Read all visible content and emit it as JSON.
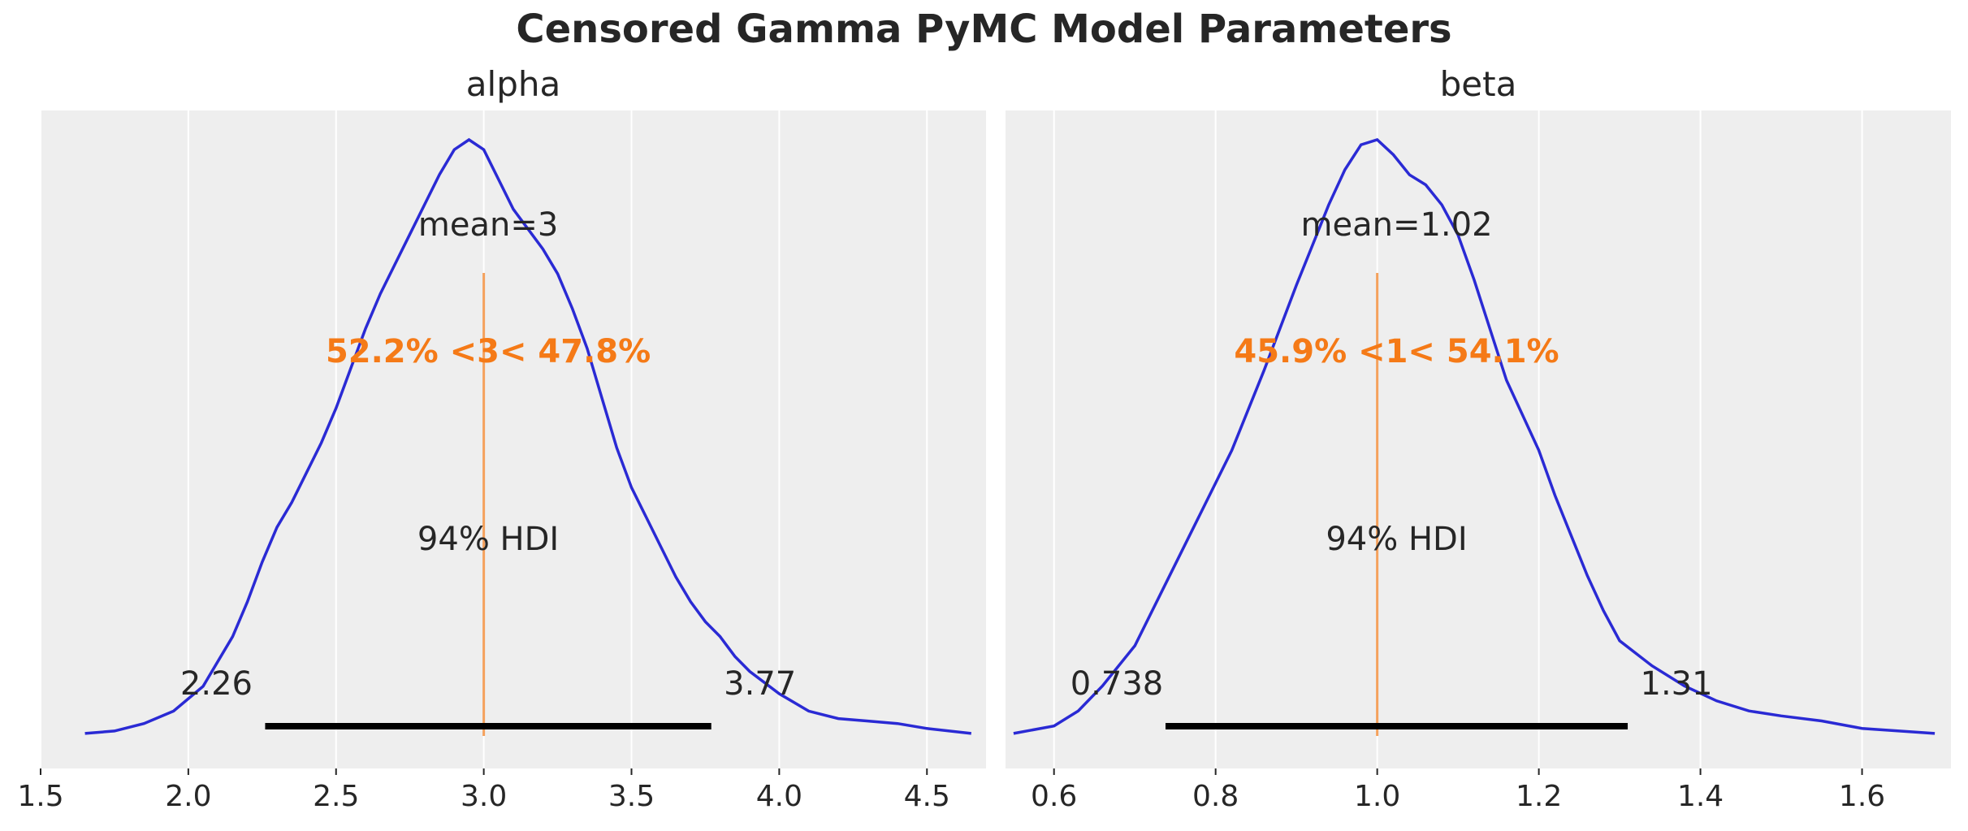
{
  "figure": {
    "suptitle": "Censored Gamma PyMC Model Parameters",
    "colors": {
      "kde": "#2a2ad4",
      "reference": "#f57a17",
      "reference_line": "#f5a15c",
      "hdi": "#000000",
      "background": "#eeeeee"
    }
  },
  "chart_data": [
    {
      "type": "line",
      "title": "alpha",
      "xlim": [
        1.5,
        4.7
      ],
      "xticks": [
        "1.5",
        "2.0",
        "2.5",
        "3.0",
        "3.5",
        "4.0",
        "4.5"
      ],
      "xtick_values": [
        1.5,
        2.0,
        2.5,
        3.0,
        3.5,
        4.0,
        4.5
      ],
      "grid": true,
      "mean_label": "mean=3",
      "ref_label": "52.2% <3< 47.8%",
      "ref_value": 3.0,
      "hdi_label": "94% HDI",
      "hdi": [
        2.26,
        3.77
      ],
      "hdi_low_label": "2.26",
      "hdi_high_label": "3.77",
      "series": [
        {
          "x": [
            1.65,
            1.75,
            1.85,
            1.95,
            2.05,
            2.15,
            2.2,
            2.25,
            2.3,
            2.35,
            2.4,
            2.45,
            2.5,
            2.55,
            2.6,
            2.65,
            2.7,
            2.75,
            2.8,
            2.85,
            2.9,
            2.95,
            3.0,
            3.05,
            3.1,
            3.15,
            3.2,
            3.25,
            3.3,
            3.35,
            3.4,
            3.45,
            3.5,
            3.55,
            3.6,
            3.65,
            3.7,
            3.75,
            3.8,
            3.85,
            3.9,
            4.0,
            4.1,
            4.2,
            4.3,
            4.4,
            4.5,
            4.65
          ],
          "y": [
            0.005,
            0.01,
            0.025,
            0.05,
            0.1,
            0.2,
            0.27,
            0.35,
            0.42,
            0.47,
            0.53,
            0.59,
            0.66,
            0.74,
            0.82,
            0.89,
            0.95,
            1.01,
            1.07,
            1.13,
            1.18,
            1.2,
            1.18,
            1.12,
            1.06,
            1.02,
            0.98,
            0.93,
            0.86,
            0.78,
            0.68,
            0.58,
            0.5,
            0.44,
            0.38,
            0.32,
            0.27,
            0.23,
            0.2,
            0.16,
            0.13,
            0.085,
            0.05,
            0.035,
            0.03,
            0.025,
            0.015,
            0.005
          ]
        }
      ]
    },
    {
      "type": "line",
      "title": "beta",
      "xlim": [
        0.54,
        1.71
      ],
      "xticks": [
        "0.6",
        "0.8",
        "1.0",
        "1.2",
        "1.4",
        "1.6"
      ],
      "xtick_values": [
        0.6,
        0.8,
        1.0,
        1.2,
        1.4,
        1.6
      ],
      "grid": true,
      "mean_label": "mean=1.02",
      "ref_label": "45.9% <1< 54.1%",
      "ref_value": 1.0,
      "hdi_label": "94% HDI",
      "hdi": [
        0.738,
        1.31
      ],
      "hdi_low_label": "0.738",
      "hdi_high_label": "1.31",
      "series": [
        {
          "x": [
            0.55,
            0.6,
            0.63,
            0.66,
            0.7,
            0.74,
            0.78,
            0.82,
            0.86,
            0.9,
            0.92,
            0.94,
            0.96,
            0.98,
            1.0,
            1.02,
            1.04,
            1.06,
            1.08,
            1.1,
            1.12,
            1.14,
            1.16,
            1.18,
            1.2,
            1.22,
            1.24,
            1.26,
            1.28,
            1.3,
            1.34,
            1.38,
            1.42,
            1.46,
            1.5,
            1.55,
            1.6,
            1.69
          ],
          "y": [
            0.005,
            0.02,
            0.05,
            0.1,
            0.18,
            0.31,
            0.44,
            0.57,
            0.73,
            0.9,
            0.98,
            1.06,
            1.13,
            1.18,
            1.19,
            1.16,
            1.12,
            1.1,
            1.06,
            1.0,
            0.91,
            0.81,
            0.71,
            0.64,
            0.57,
            0.48,
            0.4,
            0.32,
            0.25,
            0.19,
            0.14,
            0.1,
            0.07,
            0.05,
            0.04,
            0.03,
            0.015,
            0.005
          ]
        }
      ]
    }
  ]
}
